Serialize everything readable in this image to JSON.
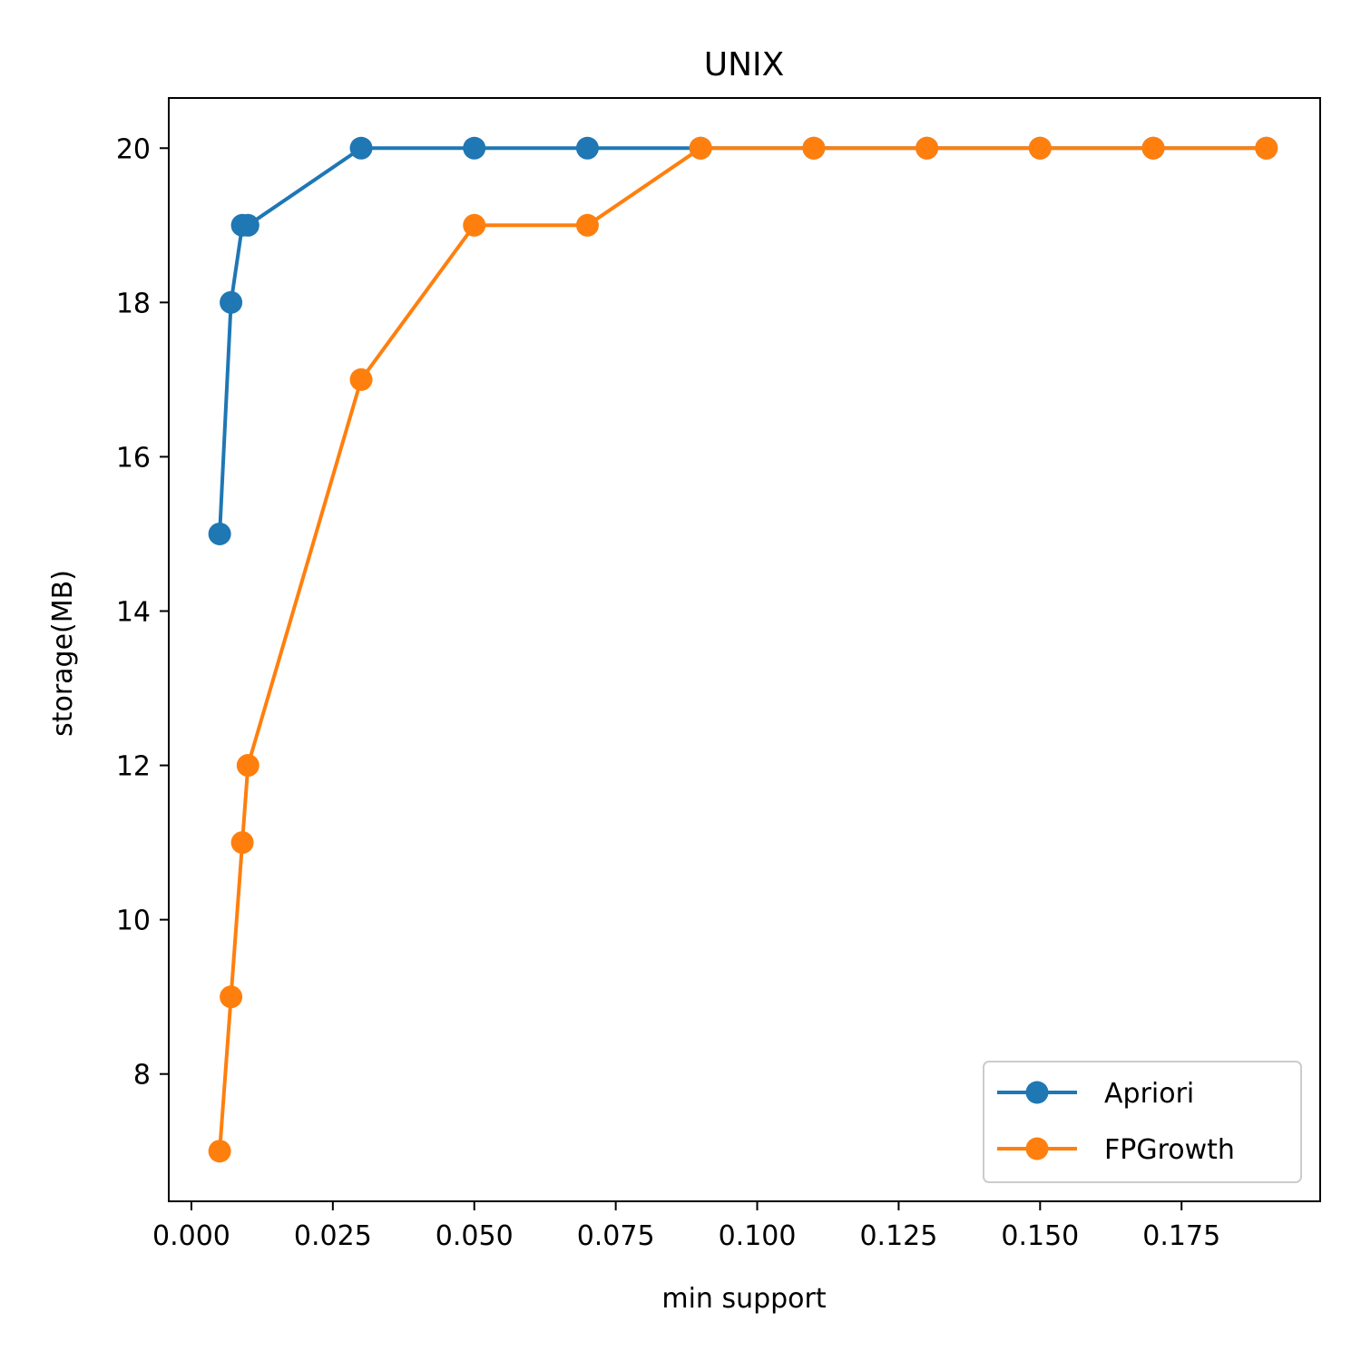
{
  "chart_data": {
    "type": "line",
    "title": "UNIX",
    "xlabel": "min support",
    "ylabel": "storage(MB)",
    "xlim": [
      -0.004,
      0.1995
    ],
    "ylim": [
      6.35,
      20.65
    ],
    "xticks": [
      0.0,
      0.025,
      0.05,
      0.075,
      0.1,
      0.125,
      0.15,
      0.175
    ],
    "xtick_labels": [
      "0.000",
      "0.025",
      "0.050",
      "0.075",
      "0.100",
      "0.125",
      "0.150",
      "0.175"
    ],
    "yticks": [
      8,
      10,
      12,
      14,
      16,
      18,
      20
    ],
    "ytick_labels": [
      "8",
      "10",
      "12",
      "14",
      "16",
      "18",
      "20"
    ],
    "grid": false,
    "legend_position": "lower-right",
    "series": [
      {
        "name": "Apriori",
        "color": "#1f77b4",
        "marker": "circle",
        "x": [
          0.005,
          0.007,
          0.009,
          0.01,
          0.03,
          0.05,
          0.07,
          0.09,
          0.11,
          0.13,
          0.15,
          0.17,
          0.19
        ],
        "y": [
          15,
          18,
          19,
          19,
          20,
          20,
          20,
          20,
          20,
          20,
          20,
          20,
          20
        ]
      },
      {
        "name": "FPGrowth",
        "color": "#ff7f0e",
        "marker": "circle",
        "x": [
          0.005,
          0.007,
          0.009,
          0.01,
          0.03,
          0.05,
          0.07,
          0.09,
          0.11,
          0.13,
          0.15,
          0.17,
          0.19
        ],
        "y": [
          7,
          9,
          11,
          12,
          17,
          19,
          19,
          20,
          20,
          20,
          20,
          20,
          20
        ]
      }
    ]
  }
}
